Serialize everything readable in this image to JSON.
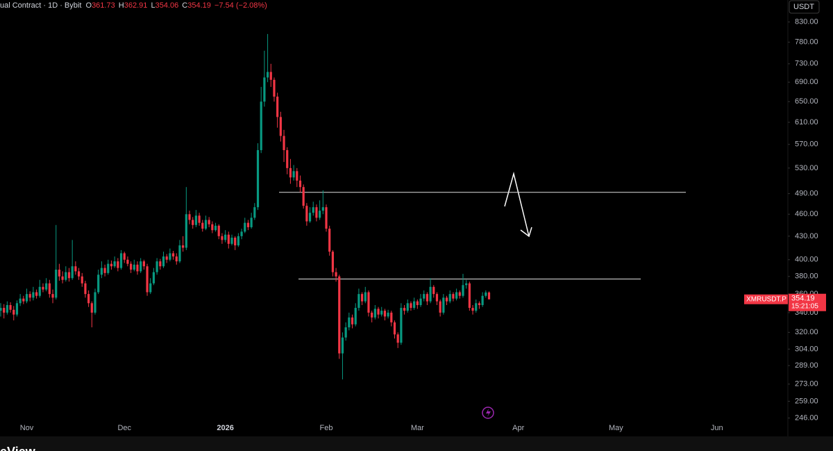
{
  "chart_data": {
    "type": "candlestick",
    "title": "ual Contract · 1D · Bybit",
    "ohlc_labels": [
      "O",
      "H",
      "L",
      "C"
    ],
    "change": "−7.54 (−2.08%)",
    "symbol": "XMRUSDT.P",
    "countdown": "15:21:05",
    "currency": "USDT",
    "footer": "eView",
    "up_color": "#089981",
    "down_color": "#f23645",
    "log_scale": true,
    "grid": false,
    "ylim": [
      236,
      888
    ],
    "yticks": [
      {
        "value": 830,
        "label": "830.00"
      },
      {
        "value": 780,
        "label": "780.00"
      },
      {
        "value": 730,
        "label": "730.00"
      },
      {
        "value": 690,
        "label": "690.00"
      },
      {
        "value": 650,
        "label": "650.00"
      },
      {
        "value": 610,
        "label": "610.00"
      },
      {
        "value": 570,
        "label": "570.00"
      },
      {
        "value": 530,
        "label": "530.00"
      },
      {
        "value": 490,
        "label": "490.00"
      },
      {
        "value": 460,
        "label": "460.00"
      },
      {
        "value": 430,
        "label": "430.00"
      },
      {
        "value": 400,
        "label": "400.00"
      },
      {
        "value": 380,
        "label": "380.00"
      },
      {
        "value": 360,
        "label": "360.00"
      },
      {
        "value": 340,
        "label": "340.00"
      },
      {
        "value": 320,
        "label": "320.00"
      },
      {
        "value": 304,
        "label": "304.00"
      },
      {
        "value": 289,
        "label": "289.00"
      },
      {
        "value": 273,
        "label": "273.00"
      },
      {
        "value": 259,
        "label": "259.00"
      },
      {
        "value": 246,
        "label": "246.00"
      }
    ],
    "levels": [
      492,
      377
    ],
    "categories": [
      null,
      null,
      null,
      null,
      null,
      null,
      null,
      null,
      "Nov",
      null,
      null,
      null,
      null,
      null,
      null,
      null,
      null,
      null,
      null,
      null,
      null,
      null,
      null,
      null,
      null,
      null,
      null,
      null,
      null,
      null,
      null,
      null,
      null,
      null,
      null,
      null,
      null,
      null,
      "Dec",
      null,
      null,
      null,
      null,
      null,
      null,
      null,
      null,
      null,
      null,
      null,
      null,
      null,
      null,
      null,
      null,
      null,
      null,
      null,
      null,
      null,
      null,
      null,
      null,
      null,
      null,
      null,
      null,
      null,
      null,
      "2026",
      null,
      null,
      null,
      null,
      null,
      null,
      null,
      null,
      null,
      null,
      null,
      null,
      null,
      null,
      null,
      null,
      null,
      null,
      null,
      null,
      null,
      null,
      null,
      null,
      null,
      null,
      null,
      null,
      null,
      null,
      "Feb",
      null,
      null,
      null,
      null,
      null,
      null,
      null,
      null,
      null,
      null,
      null,
      null,
      null,
      null,
      null,
      null,
      null,
      null,
      null,
      null,
      null,
      null,
      null,
      null,
      null,
      null,
      null,
      "Mar",
      null,
      null,
      null,
      null,
      null,
      null,
      null,
      null,
      null,
      null,
      null,
      null,
      null,
      null,
      null,
      null,
      null,
      null,
      null,
      null,
      null,
      null,
      null,
      null,
      null,
      null,
      null,
      null,
      null,
      null,
      "Apr",
      null,
      null,
      null,
      null,
      null,
      null,
      null,
      null,
      null,
      null,
      null,
      null,
      null,
      null,
      null,
      null,
      null,
      null,
      null,
      null,
      null,
      null,
      null,
      null,
      null,
      null,
      null,
      null,
      null,
      "May",
      null,
      null,
      null,
      null,
      null,
      null,
      null,
      null,
      null,
      null,
      null,
      null,
      null,
      null,
      null,
      null,
      null,
      null,
      null,
      null,
      null,
      null,
      null,
      null,
      null,
      null,
      null,
      null,
      null,
      null,
      "Jun"
    ],
    "open": [
      342,
      345,
      340,
      348,
      343,
      338,
      350,
      355,
      352,
      360,
      356,
      362,
      358,
      368,
      365,
      372,
      360,
      356,
      388,
      380,
      376,
      385,
      378,
      392,
      386,
      380,
      372,
      360,
      350,
      340,
      362,
      382,
      390,
      384,
      395,
      392,
      398,
      390,
      408,
      400,
      395,
      388,
      394,
      386,
      398,
      392,
      362,
      372,
      385,
      398,
      392,
      404,
      400,
      408,
      404,
      398,
      418,
      415,
      460,
      452,
      445,
      458,
      448,
      440,
      452,
      446,
      438,
      444,
      430,
      425,
      432,
      420,
      428,
      418,
      430,
      436,
      448,
      442,
      455,
      470,
      560,
      650,
      700,
      712,
      695,
      660,
      620,
      585,
      560,
      530,
      515,
      525,
      510,
      500,
      472,
      450,
      462,
      470,
      455,
      465,
      470,
      440,
      410,
      385,
      380,
      300,
      315,
      325,
      335,
      328,
      345,
      360,
      352,
      362,
      340,
      335,
      344,
      338,
      342,
      336,
      340,
      330,
      318,
      310,
      345,
      342,
      350,
      345,
      352,
      348,
      355,
      360,
      352,
      368,
      360,
      352,
      340,
      356,
      352,
      360,
      355,
      362,
      358,
      370,
      372,
      345,
      342,
      350,
      348,
      358,
      361.73,
      null,
      null,
      null,
      null,
      null,
      null,
      null,
      null,
      null,
      null,
      null,
      null,
      null,
      null,
      null,
      null,
      null,
      null,
      null,
      null,
      null,
      null,
      null,
      null,
      null,
      null,
      null,
      null,
      null,
      null,
      null,
      null,
      null,
      null,
      null,
      null,
      null,
      null,
      null,
      null,
      null,
      null,
      null,
      null,
      null,
      null,
      null,
      null,
      null,
      null,
      null,
      null,
      null,
      null,
      null,
      null,
      null,
      null,
      null,
      null,
      null,
      null,
      null,
      null,
      null,
      null,
      null,
      null,
      null,
      null
    ],
    "high": [
      350,
      349,
      352,
      351,
      347,
      353,
      360,
      358,
      366,
      363,
      368,
      365,
      376,
      372,
      378,
      376,
      365,
      445,
      395,
      386,
      392,
      390,
      425,
      398,
      390,
      384,
      375,
      364,
      352,
      366,
      388,
      398,
      394,
      400,
      399,
      404,
      402,
      412,
      410,
      404,
      398,
      400,
      398,
      402,
      400,
      395,
      378,
      390,
      402,
      401,
      410,
      407,
      414,
      411,
      408,
      425,
      430,
      500,
      465,
      456,
      466,
      462,
      452,
      458,
      456,
      450,
      448,
      446,
      434,
      438,
      436,
      432,
      430,
      434,
      440,
      455,
      452,
      462,
      476,
      572,
      680,
      760,
      800,
      730,
      700,
      668,
      630,
      596,
      565,
      545,
      535,
      530,
      518,
      504,
      476,
      470,
      478,
      474,
      480,
      495,
      474,
      444,
      412,
      390,
      382,
      320,
      330,
      340,
      338,
      350,
      366,
      362,
      368,
      364,
      342,
      348,
      346,
      346,
      344,
      343,
      342,
      332,
      320,
      350,
      348,
      354,
      352,
      356,
      354,
      360,
      364,
      362,
      378,
      370,
      362,
      354,
      360,
      358,
      364,
      362,
      366,
      364,
      383,
      376,
      374,
      348,
      354,
      352,
      362,
      364,
      362.91,
      null,
      null,
      null,
      null,
      null,
      null,
      null,
      null,
      null,
      null,
      null,
      null,
      null,
      null,
      null,
      null,
      null,
      null,
      null,
      null,
      null,
      null,
      null,
      null,
      null,
      null,
      null,
      null,
      null,
      null,
      null,
      null,
      null,
      null,
      null,
      null,
      null,
      null,
      null,
      null,
      null,
      null,
      null,
      null,
      null,
      null,
      null,
      null,
      null,
      null,
      null,
      null,
      null,
      null,
      null,
      null,
      null,
      null,
      null,
      null,
      null,
      null,
      null,
      null,
      null,
      null,
      null,
      null,
      null,
      null
    ],
    "low": [
      336,
      334,
      338,
      340,
      332,
      336,
      347,
      349,
      350,
      352,
      353,
      355,
      356,
      362,
      363,
      356,
      350,
      354,
      375,
      372,
      374,
      374,
      376,
      382,
      376,
      368,
      356,
      346,
      325,
      338,
      360,
      378,
      380,
      382,
      388,
      390,
      386,
      388,
      396,
      392,
      384,
      386,
      382,
      384,
      388,
      358,
      360,
      370,
      382,
      388,
      390,
      396,
      398,
      400,
      394,
      396,
      410,
      412,
      446,
      440,
      442,
      444,
      436,
      438,
      442,
      434,
      436,
      426,
      420,
      422,
      414,
      418,
      412,
      416,
      426,
      434,
      438,
      440,
      452,
      466,
      555,
      640,
      690,
      680,
      650,
      600,
      575,
      540,
      520,
      505,
      510,
      500,
      492,
      468,
      444,
      448,
      458,
      450,
      452,
      460,
      436,
      405,
      380,
      374,
      295,
      277,
      312,
      322,
      324,
      326,
      342,
      348,
      350,
      336,
      330,
      333,
      334,
      336,
      332,
      334,
      326,
      314,
      305,
      308,
      338,
      340,
      342,
      343,
      344,
      346,
      352,
      348,
      350,
      356,
      348,
      336,
      338,
      348,
      350,
      352,
      353,
      355,
      356,
      366,
      342,
      338,
      340,
      344,
      346,
      356,
      354.06,
      null,
      null,
      null,
      null,
      null,
      null,
      null,
      null,
      null,
      null,
      null,
      null,
      null,
      null,
      null,
      null,
      null,
      null,
      null,
      null,
      null,
      null,
      null,
      null,
      null,
      null,
      null,
      null,
      null,
      null,
      null,
      null,
      null,
      null,
      null,
      null,
      null,
      null,
      null,
      null,
      null,
      null,
      null,
      null,
      null,
      null,
      null,
      null,
      null,
      null,
      null,
      null,
      null,
      null,
      null,
      null,
      null,
      null,
      null,
      null,
      null,
      null,
      null,
      null,
      null,
      null,
      null,
      null,
      null,
      null
    ],
    "close": [
      345,
      340,
      348,
      343,
      338,
      350,
      355,
      352,
      360,
      356,
      362,
      358,
      368,
      365,
      372,
      360,
      356,
      388,
      380,
      376,
      385,
      378,
      392,
      386,
      380,
      372,
      360,
      350,
      340,
      362,
      382,
      390,
      384,
      395,
      392,
      398,
      390,
      408,
      400,
      395,
      388,
      394,
      386,
      398,
      392,
      362,
      372,
      385,
      398,
      392,
      404,
      400,
      408,
      404,
      398,
      418,
      415,
      460,
      452,
      445,
      458,
      448,
      440,
      452,
      446,
      438,
      444,
      430,
      425,
      432,
      420,
      428,
      418,
      430,
      436,
      448,
      442,
      455,
      470,
      560,
      650,
      700,
      712,
      695,
      660,
      620,
      585,
      560,
      530,
      515,
      525,
      510,
      500,
      472,
      450,
      462,
      470,
      455,
      465,
      470,
      440,
      410,
      385,
      380,
      300,
      315,
      325,
      335,
      328,
      345,
      360,
      352,
      362,
      340,
      335,
      344,
      338,
      342,
      336,
      340,
      330,
      318,
      310,
      345,
      342,
      350,
      345,
      352,
      348,
      355,
      360,
      352,
      368,
      360,
      352,
      340,
      356,
      352,
      360,
      355,
      362,
      358,
      370,
      372,
      345,
      342,
      350,
      348,
      358,
      361.73,
      354.19,
      null,
      null,
      null,
      null,
      null,
      null,
      null,
      null,
      null,
      null,
      null,
      null,
      null,
      null,
      null,
      null,
      null,
      null,
      null,
      null,
      null,
      null,
      null,
      null,
      null,
      null,
      null,
      null,
      null,
      null,
      null,
      null,
      null,
      null,
      null,
      null,
      null,
      null,
      null,
      null,
      null,
      null,
      null,
      null,
      null,
      null,
      null,
      null,
      null,
      null,
      null,
      null,
      null,
      null,
      null,
      null,
      null,
      null,
      null,
      null,
      null,
      null,
      null,
      null,
      null,
      null,
      null,
      null,
      null,
      null
    ]
  }
}
